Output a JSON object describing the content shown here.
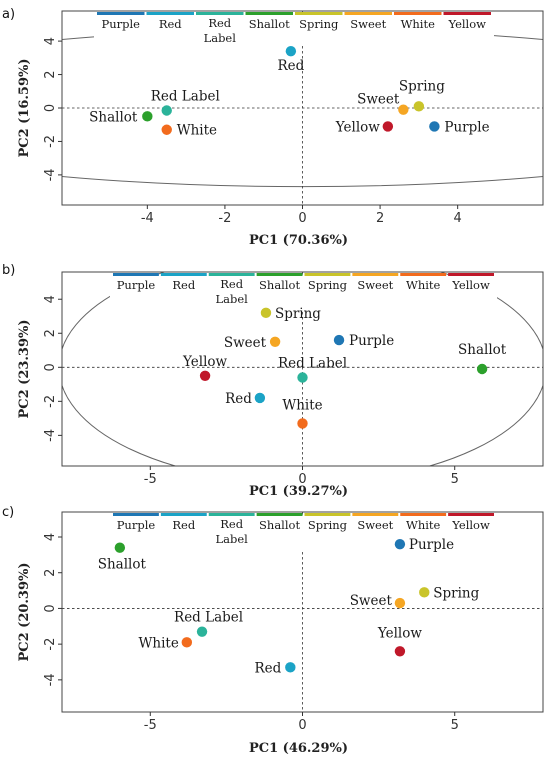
{
  "colors": {
    "Purple": "#1f77b4",
    "Red": "#1ba3c6",
    "Red Label": "#2bb39a",
    "Shallot": "#2ca02c",
    "Spring": "#c9c42a",
    "Sweet": "#f5a623",
    "White": "#f26b1d",
    "Yellow": "#c0182a"
  },
  "legend_labels": [
    "Purple",
    "Red",
    "Red Label",
    "Shallot",
    "Spring",
    "Sweet",
    "White",
    "Yellow"
  ],
  "chart_data": [
    {
      "type": "scatter",
      "panel": "a)",
      "xlabel": "PC1 (70.36%)",
      "ylabel": "PC2 (16.59%)",
      "xlim": [
        -6.2,
        6.2
      ],
      "ylim": [
        -5.8,
        5.8
      ],
      "xticks": [
        "-4",
        "-2",
        "0",
        "2",
        "4"
      ],
      "xtick_values": [
        -4,
        -2,
        0,
        2,
        4
      ],
      "yticks": [
        "-4",
        "-2",
        "0",
        "2",
        "4"
      ],
      "ytick_values": [
        -4,
        -2,
        0,
        2,
        4
      ],
      "ellipse": {
        "cx": 0,
        "cy": 0,
        "rx": 12.6,
        "ry": 4.7
      },
      "points": [
        {
          "name": "Red",
          "x": -0.3,
          "y": 3.4
        },
        {
          "name": "Red Label",
          "x": -3.5,
          "y": -0.15
        },
        {
          "name": "Shallot",
          "x": -4.0,
          "y": -0.5
        },
        {
          "name": "White",
          "x": -3.5,
          "y": -1.3
        },
        {
          "name": "Sweet",
          "x": 2.6,
          "y": -0.1
        },
        {
          "name": "Spring",
          "x": 3.0,
          "y": 0.1
        },
        {
          "name": "Yellow",
          "x": 2.2,
          "y": -1.1
        },
        {
          "name": "Purple",
          "x": 3.4,
          "y": -1.1
        }
      ]
    },
    {
      "type": "scatter",
      "panel": "b)",
      "xlabel": "PC1 (39.27%)",
      "ylabel": "PC2 (23.39%)",
      "xlim": [
        -7.9,
        7.9
      ],
      "ylim": [
        -5.8,
        5.6
      ],
      "xticks": [
        "-5",
        "0",
        "5"
      ],
      "xtick_values": [
        -5,
        0,
        5
      ],
      "yticks": [
        "-4",
        "-2",
        "0",
        "2",
        "4"
      ],
      "ytick_values": [
        -4,
        -2,
        0,
        2,
        4
      ],
      "ellipse": {
        "cx": 0,
        "cy": 0,
        "rx": 8.0,
        "ry": 6.8
      },
      "points": [
        {
          "name": "Spring",
          "x": -1.2,
          "y": 3.2
        },
        {
          "name": "Sweet",
          "x": -0.9,
          "y": 1.5
        },
        {
          "name": "Purple",
          "x": 1.2,
          "y": 1.6
        },
        {
          "name": "Shallot",
          "x": 5.9,
          "y": -0.1
        },
        {
          "name": "Yellow",
          "x": -3.2,
          "y": -0.5
        },
        {
          "name": "Red Label",
          "x": 0.0,
          "y": -0.6
        },
        {
          "name": "Red",
          "x": -1.4,
          "y": -1.8
        },
        {
          "name": "White",
          "x": 0.0,
          "y": -3.3
        }
      ]
    },
    {
      "type": "scatter",
      "panel": "c)",
      "xlabel": "PC1 (46.29%)",
      "ylabel": "PC2 (20.39%)",
      "xlim": [
        -7.9,
        7.9
      ],
      "ylim": [
        -5.8,
        5.4
      ],
      "xticks": [
        "-5",
        "0",
        "5"
      ],
      "xtick_values": [
        -5,
        0,
        5
      ],
      "yticks": [
        "-4",
        "-2",
        "0",
        "2",
        "4"
      ],
      "ytick_values": [
        -4,
        -2,
        0,
        2,
        4
      ],
      "ellipse": null,
      "points": [
        {
          "name": "Shallot",
          "x": -6.0,
          "y": 3.4
        },
        {
          "name": "Purple",
          "x": 3.2,
          "y": 3.6
        },
        {
          "name": "Sweet",
          "x": 3.2,
          "y": 0.3
        },
        {
          "name": "Spring",
          "x": 4.0,
          "y": 0.9
        },
        {
          "name": "Red Label",
          "x": -3.3,
          "y": -1.3
        },
        {
          "name": "White",
          "x": -3.8,
          "y": -1.9
        },
        {
          "name": "Yellow",
          "x": 3.2,
          "y": -2.4
        },
        {
          "name": "Red",
          "x": -0.4,
          "y": -3.3
        }
      ]
    }
  ]
}
